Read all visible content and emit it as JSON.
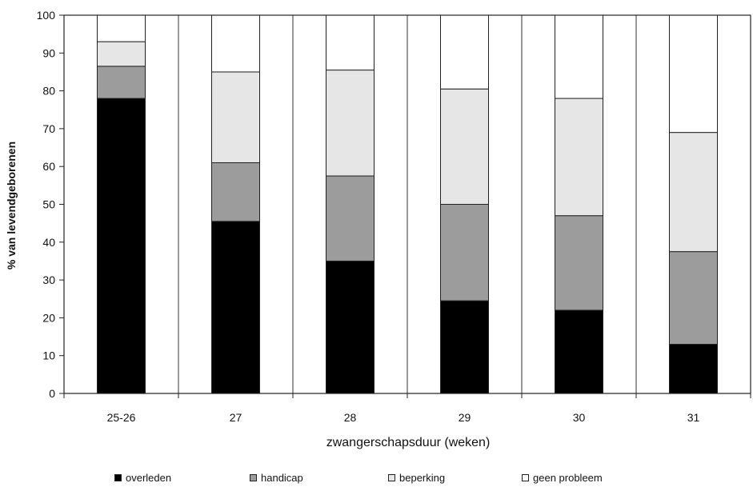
{
  "chart_data": {
    "type": "bar",
    "stacked": true,
    "xlabel": "zwangerschapsduur (weken)",
    "ylabel": "% van levendgeborenen",
    "ylim": [
      0,
      100
    ],
    "yticks": [
      0,
      10,
      20,
      30,
      40,
      50,
      60,
      70,
      80,
      90,
      100
    ],
    "categories": [
      "25-26",
      "27",
      "28",
      "29",
      "30",
      "31"
    ],
    "series": [
      {
        "name": "overleden",
        "color": "#000000",
        "values": [
          78,
          45.5,
          35,
          24.5,
          22,
          13
        ]
      },
      {
        "name": "handicap",
        "color": "#9c9c9c",
        "values": [
          8.5,
          15.5,
          22.5,
          25.5,
          25,
          24.5
        ]
      },
      {
        "name": "beperking",
        "color": "#e6e6e6",
        "values": [
          6.5,
          24,
          28,
          30.5,
          31,
          31.5
        ]
      },
      {
        "name": "geen probleem",
        "color": "#ffffff",
        "values": [
          7,
          15,
          14.5,
          19.5,
          22,
          31
        ]
      }
    ],
    "grid": false,
    "legend_position": "bottom"
  }
}
